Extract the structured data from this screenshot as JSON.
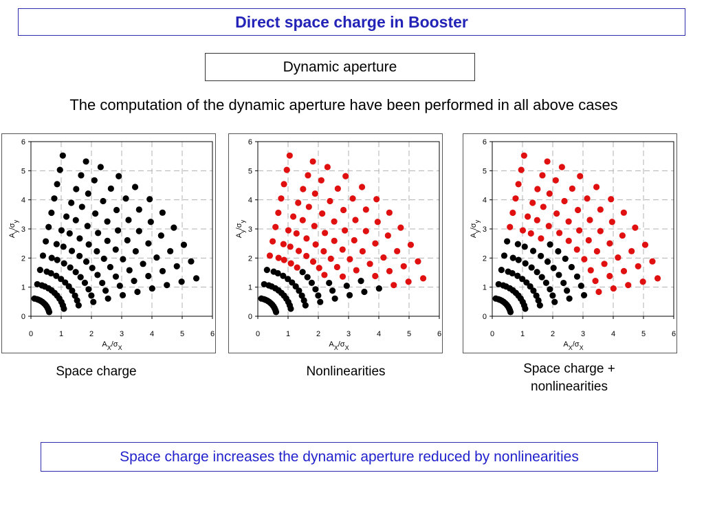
{
  "header": {
    "title": "Direct space charge in Booster"
  },
  "section": {
    "subtitle": "Dynamic aperture"
  },
  "intro_text": "The computation of the dynamic aperture have been performed in all above cases",
  "conclusion": "Space charge increases the dynamic aperture reduced by nonlinearities",
  "colors": {
    "accent": "#2323b8",
    "stable": "#000000",
    "lost": "#e01010"
  },
  "captions": [
    "Space charge",
    "Nonlinearities",
    "Space charge +",
    "nonlinearities"
  ],
  "axis_labels": {
    "x_main": "A",
    "x_sub": "X",
    "x_sigma": "/σ",
    "x_sigma_sub": "X",
    "y_main": "A",
    "y_sub": "y",
    "y_sigma": "/σ",
    "y_sigma_sub": "y"
  },
  "chart_data": [
    {
      "type": "scatter",
      "xlim": [
        0,
        6
      ],
      "ylim": [
        0,
        6
      ],
      "xticks": [
        "0",
        "1",
        "2",
        "3",
        "4",
        "5",
        "6"
      ],
      "yticks": [
        "0",
        "1",
        "2",
        "3",
        "4",
        "5",
        "6"
      ],
      "grid": true,
      "rays": [
        {
          "angle_deg": 79.2,
          "r_min": 0.62,
          "stable_max": 5.7,
          "lost_max": null
        },
        {
          "angle_deg": 71.1,
          "r_min": 0.62,
          "stable_max": 5.7,
          "lost_max": null
        },
        {
          "angle_deg": 65.8,
          "r_min": 0.62,
          "stable_max": 5.7,
          "lost_max": null
        },
        {
          "angle_deg": 58.9,
          "r_min": 0.62,
          "stable_max": 5.8,
          "lost_max": null
        },
        {
          "angle_deg": 52.2,
          "r_min": 0.62,
          "stable_max": 5.8,
          "lost_max": null
        },
        {
          "angle_deg": 45.7,
          "r_min": 0.62,
          "stable_max": 5.8,
          "lost_max": null
        },
        {
          "angle_deg": 39.3,
          "r_min": 0.62,
          "stable_max": 5.8,
          "lost_max": null
        },
        {
          "angle_deg": 32.8,
          "r_min": 0.62,
          "stable_max": 5.8,
          "lost_max": null
        },
        {
          "angle_deg": 25.9,
          "r_min": 0.62,
          "stable_max": 5.8,
          "lost_max": null
        },
        {
          "angle_deg": 19.6,
          "r_min": 0.62,
          "stable_max": 5.8,
          "lost_max": null
        },
        {
          "angle_deg": 13.4,
          "r_min": 0.62,
          "stable_max": 5.8,
          "lost_max": null
        }
      ]
    },
    {
      "type": "scatter",
      "xlim": [
        0,
        6
      ],
      "ylim": [
        0,
        6
      ],
      "xticks": [
        "0",
        "1",
        "2",
        "3",
        "4",
        "5",
        "6"
      ],
      "yticks": [
        "0",
        "1",
        "2",
        "3",
        "4",
        "5",
        "6"
      ],
      "grid": true,
      "rays": [
        {
          "angle_deg": 79.2,
          "r_min": 0.62,
          "stable_max": 1.8,
          "lost_max": 5.7
        },
        {
          "angle_deg": 71.1,
          "r_min": 0.62,
          "stable_max": 1.7,
          "lost_max": 5.7
        },
        {
          "angle_deg": 65.8,
          "r_min": 0.62,
          "stable_max": 1.7,
          "lost_max": 5.7
        },
        {
          "angle_deg": 58.9,
          "r_min": 0.62,
          "stable_max": 1.8,
          "lost_max": 5.8
        },
        {
          "angle_deg": 52.2,
          "r_min": 0.62,
          "stable_max": 2.0,
          "lost_max": 5.8
        },
        {
          "angle_deg": 45.7,
          "r_min": 0.62,
          "stable_max": 2.3,
          "lost_max": 5.8
        },
        {
          "angle_deg": 39.3,
          "r_min": 0.62,
          "stable_max": 2.5,
          "lost_max": 5.8
        },
        {
          "angle_deg": 32.8,
          "r_min": 0.62,
          "stable_max": 2.6,
          "lost_max": 5.8
        },
        {
          "angle_deg": 25.9,
          "r_min": 0.62,
          "stable_max": 3.0,
          "lost_max": 5.8
        },
        {
          "angle_deg": 19.6,
          "r_min": 0.62,
          "stable_max": 3.7,
          "lost_max": 5.8
        },
        {
          "angle_deg": 13.4,
          "r_min": 0.62,
          "stable_max": 4.4,
          "lost_max": 5.8
        }
      ]
    },
    {
      "type": "scatter",
      "xlim": [
        0,
        6
      ],
      "ylim": [
        0,
        6
      ],
      "xticks": [
        "0",
        "1",
        "2",
        "3",
        "4",
        "5",
        "6"
      ],
      "yticks": [
        "0",
        "1",
        "2",
        "3",
        "4",
        "5",
        "6"
      ],
      "grid": true,
      "rays": [
        {
          "angle_deg": 79.2,
          "r_min": 0.62,
          "stable_max": 2.8,
          "lost_max": 5.7
        },
        {
          "angle_deg": 71.1,
          "r_min": 0.62,
          "stable_max": 2.8,
          "lost_max": 5.7
        },
        {
          "angle_deg": 65.8,
          "r_min": 0.62,
          "stable_max": 2.9,
          "lost_max": 5.7
        },
        {
          "angle_deg": 58.9,
          "r_min": 0.62,
          "stable_max": 3.0,
          "lost_max": 5.8
        },
        {
          "angle_deg": 52.2,
          "r_min": 0.62,
          "stable_max": 3.3,
          "lost_max": 5.8
        },
        {
          "angle_deg": 45.7,
          "r_min": 0.62,
          "stable_max": 3.3,
          "lost_max": 5.8
        },
        {
          "angle_deg": 39.3,
          "r_min": 0.62,
          "stable_max": 3.5,
          "lost_max": 5.8
        },
        {
          "angle_deg": 32.8,
          "r_min": 0.62,
          "stable_max": 3.5,
          "lost_max": 5.8
        },
        {
          "angle_deg": 25.9,
          "r_min": 0.62,
          "stable_max": 3.4,
          "lost_max": 5.8
        },
        {
          "angle_deg": 19.6,
          "r_min": 0.62,
          "stable_max": 3.2,
          "lost_max": 5.8
        },
        {
          "angle_deg": 13.4,
          "r_min": 0.62,
          "stable_max": 3.2,
          "lost_max": 5.8
        }
      ]
    }
  ]
}
